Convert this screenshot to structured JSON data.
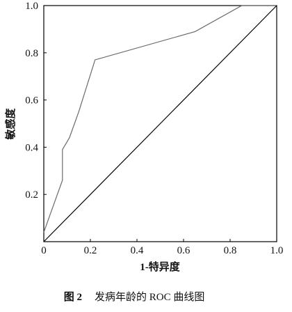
{
  "chart_data": {
    "type": "line",
    "xlabel": "1-特异度",
    "ylabel": "敏感度",
    "caption_label": "图 2",
    "caption": "发病年龄的 ROC 曲线图",
    "xlim": [
      0,
      1
    ],
    "ylim": [
      0,
      1
    ],
    "xticks": [
      0,
      0.2,
      0.4,
      0.6,
      0.8,
      {
        "value": 1,
        "label": "1.0"
      }
    ],
    "yticks": [
      0.2,
      0.4,
      0.6,
      0.8,
      {
        "value": 1,
        "label": "1.0"
      }
    ],
    "series": [
      {
        "color": "#6a6a6a",
        "x": [
          0,
          0.08,
          0.08,
          0.11,
          0.15,
          0.22,
          0.65,
          0.85,
          1
        ],
        "values": [
          0.04,
          0.26,
          0.39,
          0.44,
          0.55,
          0.77,
          0.89,
          1,
          1
        ]
      },
      {
        "color": "#000000",
        "x": [
          0,
          1
        ],
        "values": [
          0,
          1
        ]
      }
    ]
  }
}
